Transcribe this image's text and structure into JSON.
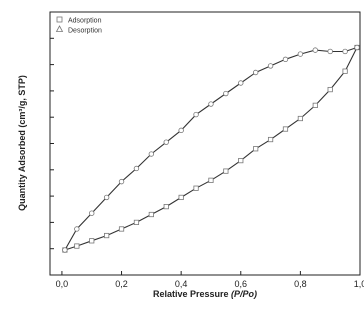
{
  "chart_data": {
    "type": "line",
    "title": "",
    "xlabel": "Relative Pressure ",
    "xlabel_italic": "(P/Po)",
    "ylabel": "Quantity Adsorbed (cm³/g, STP)",
    "xlim": [
      -0.04,
      1.0
    ],
    "ylim": [
      0,
      10
    ],
    "x_ticks": [
      "0,0",
      "0,2",
      "0,4",
      "0,6",
      "0,8",
      "1,0"
    ],
    "x_tick_values": [
      0.0,
      0.2,
      0.4,
      0.6,
      0.8,
      1.0
    ],
    "y_tick_values": [
      1,
      2,
      3,
      4,
      5,
      6,
      7,
      8,
      9
    ],
    "grid": false,
    "legend_position": "top-left",
    "series": [
      {
        "name": "Adsorption",
        "marker": "square",
        "x": [
          0.01,
          0.05,
          0.1,
          0.15,
          0.2,
          0.25,
          0.3,
          0.35,
          0.4,
          0.45,
          0.5,
          0.55,
          0.6,
          0.65,
          0.7,
          0.75,
          0.8,
          0.85,
          0.9,
          0.95,
          0.99
        ],
        "y": [
          0.95,
          1.1,
          1.3,
          1.5,
          1.75,
          2.0,
          2.3,
          2.6,
          2.95,
          3.3,
          3.6,
          3.95,
          4.35,
          4.8,
          5.15,
          5.55,
          5.95,
          6.45,
          7.05,
          7.75,
          8.65
        ]
      },
      {
        "name": "Desorption",
        "marker": "circle",
        "x": [
          0.99,
          0.95,
          0.9,
          0.85,
          0.8,
          0.75,
          0.7,
          0.65,
          0.6,
          0.55,
          0.5,
          0.45,
          0.4,
          0.35,
          0.3,
          0.25,
          0.2,
          0.15,
          0.1,
          0.05,
          0.01
        ],
        "y": [
          8.65,
          8.5,
          8.5,
          8.55,
          8.4,
          8.2,
          7.95,
          7.7,
          7.3,
          6.9,
          6.5,
          6.1,
          5.5,
          5.05,
          4.6,
          4.05,
          3.55,
          2.95,
          2.35,
          1.75,
          0.95
        ]
      }
    ]
  }
}
